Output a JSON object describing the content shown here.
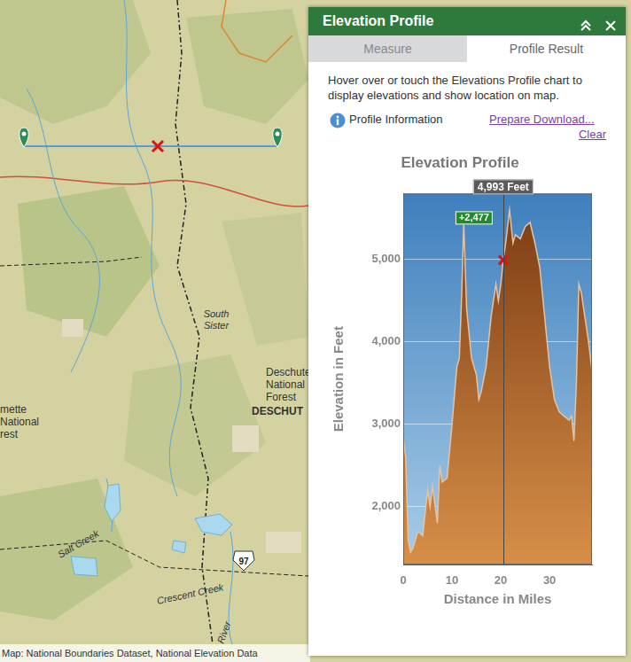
{
  "map": {
    "labels": {
      "south_sister": [
        "South",
        "Sister"
      ],
      "deschutes_forest": [
        "Deschutes",
        "National",
        "Forest"
      ],
      "deschutes_caps": "DESCHUT",
      "willamette": [
        "mette",
        "National",
        "rest"
      ],
      "salt_creek": "Salt Creek",
      "crescent_creek": "Crescent Creek",
      "river": "River",
      "highway": "97"
    },
    "attribution": "Map: National Boundaries Dataset, National Elevation Data"
  },
  "panel": {
    "title": "Elevation Profile",
    "tabs": [
      "Measure",
      "Profile Result"
    ],
    "instructions": "Hover over or touch the Elevations Profile chart to display elevations and show location on map.",
    "info": "Profile Information",
    "links": [
      "Prepare Download...",
      "Clear"
    ]
  },
  "chart_data": {
    "type": "area",
    "title": "Elevation Profile",
    "x_label": "Distance in Miles",
    "y_label": "Elevation in Feet",
    "x": [
      0,
      0.5,
      1,
      1.5,
      2,
      3,
      4,
      5,
      5.5,
      6,
      7,
      7.5,
      8,
      9,
      10,
      11,
      11.5,
      12,
      12.4,
      13,
      14,
      15,
      15.5,
      16,
      17,
      18,
      19,
      19.5,
      20,
      20.5,
      21,
      21.8,
      22.5,
      23,
      24,
      25,
      26,
      27,
      28,
      29,
      30,
      31,
      32,
      33,
      34,
      34.5,
      35,
      35.5,
      36,
      36.5,
      37,
      38,
      38.7
    ],
    "values": [
      2850,
      2600,
      1600,
      1450,
      1500,
      1700,
      1650,
      2200,
      2000,
      2250,
      1800,
      2500,
      2300,
      2350,
      3000,
      3700,
      3800,
      4600,
      5450,
      4400,
      3800,
      3600,
      3300,
      3400,
      3700,
      4300,
      4700,
      4500,
      4700,
      4993,
      5200,
      5600,
      5200,
      5300,
      5250,
      5400,
      5450,
      5200,
      4900,
      4300,
      3700,
      3300,
      3150,
      3100,
      3050,
      3100,
      2800,
      3500,
      4700,
      4600,
      4400,
      4000,
      3650
    ],
    "color": "#7a3a12",
    "xlim": [
      0,
      38.7
    ],
    "xticks": [
      0,
      10,
      20,
      30
    ],
    "ylim": [
      1300,
      5800
    ],
    "yticks": [
      {
        "value": 2000,
        "label": "2,000"
      },
      {
        "value": 3000,
        "label": "3,000"
      },
      {
        "value": 4000,
        "label": "4,000"
      },
      {
        "value": 5000,
        "label": "5,000"
      }
    ],
    "grid": true,
    "cursor": {
      "x": 20.5,
      "y": 4993,
      "label": "4,993 Feet"
    },
    "annotations": [
      "+2,477"
    ]
  }
}
